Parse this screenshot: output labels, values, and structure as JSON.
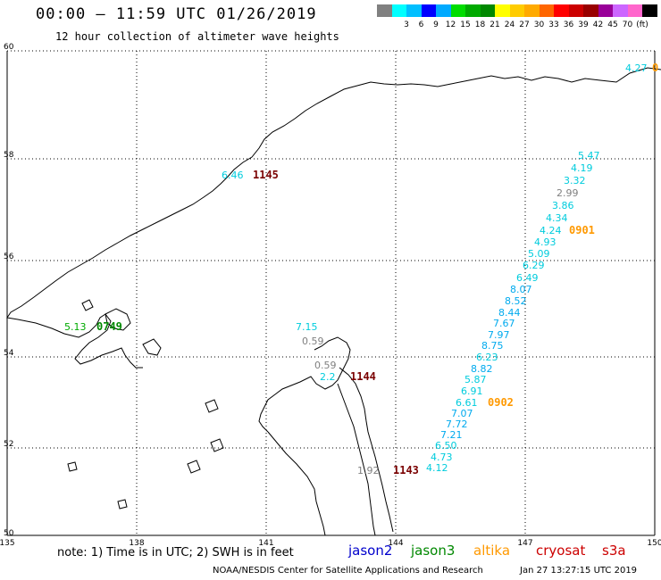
{
  "header": {
    "title": "00:00 – 11:59 UTC 01/26/2019",
    "subtitle": "12 hour collection of altimeter wave heights"
  },
  "scale": {
    "colors": [
      "#808080",
      "#00ffff",
      "#00bfff",
      "#0000ff",
      "#00aaff",
      "#00dd00",
      "#00aa00",
      "#008800",
      "#ffff00",
      "#ffcc00",
      "#ffaa00",
      "#ff6600",
      "#ff0000",
      "#cc0000",
      "#990000",
      "#990099",
      "#cc66ff",
      "#ff66cc",
      "#000000"
    ],
    "labels": [
      "3",
      "6",
      "9",
      "12",
      "15",
      "18",
      "21",
      "24",
      "27",
      "30",
      "33",
      "36",
      "39",
      "42",
      "45",
      "70",
      "(ft)"
    ]
  },
  "axes": {
    "lat_labels": [
      "60",
      "58",
      "56",
      "54",
      "52",
      "50"
    ],
    "lon_labels": [
      "135",
      "138",
      "141",
      "144",
      "147",
      "150"
    ]
  },
  "observations": [
    {
      "text": "5.47",
      "color": "#00ccdd"
    },
    {
      "text": "4.19",
      "color": "#00ccdd"
    },
    {
      "text": "3.32",
      "color": "#00ccdd"
    },
    {
      "text": "2.99",
      "color": "#808080"
    },
    {
      "text": "3.86",
      "color": "#00ccdd"
    },
    {
      "text": "4.34",
      "color": "#00ccdd"
    },
    {
      "text": "4.24",
      "color": "#00ccdd"
    },
    {
      "text": "4.93",
      "color": "#00ccdd"
    },
    {
      "text": "5.09",
      "color": "#00ccdd"
    },
    {
      "text": "6.29",
      "color": "#00ccdd"
    },
    {
      "text": "6.49",
      "color": "#00ccdd"
    },
    {
      "text": "8.07",
      "color": "#00aaee"
    },
    {
      "text": "8.52",
      "color": "#00aaee"
    },
    {
      "text": "8.44",
      "color": "#00aaee"
    },
    {
      "text": "7.67",
      "color": "#00aaee"
    },
    {
      "text": "7.97",
      "color": "#00aaee"
    },
    {
      "text": "8.75",
      "color": "#00aaee"
    },
    {
      "text": "6.23",
      "color": "#00ccdd"
    },
    {
      "text": "8.82",
      "color": "#00aaee"
    },
    {
      "text": "5.87",
      "color": "#00ccdd"
    },
    {
      "text": "6.91",
      "color": "#00ccdd"
    },
    {
      "text": "6.61",
      "color": "#00ccdd"
    },
    {
      "text": "7.07",
      "color": "#00aaee"
    },
    {
      "text": "7.72",
      "color": "#00aaee"
    },
    {
      "text": "7.21",
      "color": "#00aaee"
    },
    {
      "text": "6.50",
      "color": "#00ccdd"
    },
    {
      "text": "4.73",
      "color": "#00ccdd"
    },
    {
      "text": "4.12",
      "color": "#00ccdd"
    },
    {
      "text": "7.15",
      "color": "#00ccdd"
    },
    {
      "text": "0.59",
      "color": "#808080"
    },
    {
      "text": "0.59",
      "color": "#808080"
    },
    {
      "text": "2.2",
      "color": "#00ccdd"
    },
    {
      "text": "6.46",
      "color": "#00ccdd"
    },
    {
      "text": "1.92",
      "color": "#808080"
    },
    {
      "text": "4.27",
      "color": "#00ccdd"
    },
    {
      "text": "5.13",
      "color": "#00aa00"
    }
  ],
  "time_labels": [
    {
      "text": "0901",
      "color": "#ff9900"
    },
    {
      "text": "0902",
      "color": "#ff9900"
    },
    {
      "text": "1145",
      "color": "#7a0000"
    },
    {
      "text": "1144",
      "color": "#7a0000"
    },
    {
      "text": "1143",
      "color": "#7a0000"
    },
    {
      "text": "0749",
      "color": "#008800"
    },
    {
      "text": "0",
      "color": "#ff9900"
    }
  ],
  "footer": {
    "note": "note: 1) Time is in UTC; 2) SWH is in feet",
    "legend": [
      {
        "label": "jason2",
        "color": "#0000cc"
      },
      {
        "label": "jason3",
        "color": "#008800"
      },
      {
        "label": "altika",
        "color": "#ff9900"
      },
      {
        "label": "cryosat",
        "color": "#cc0000"
      },
      {
        "label": "s3a",
        "color": "#cc0000"
      }
    ],
    "credit": "NOAA/NESDIS Center for Satellite Applications and Research",
    "timestamp": "Jan 27 13:27:15 UTC 2019"
  }
}
